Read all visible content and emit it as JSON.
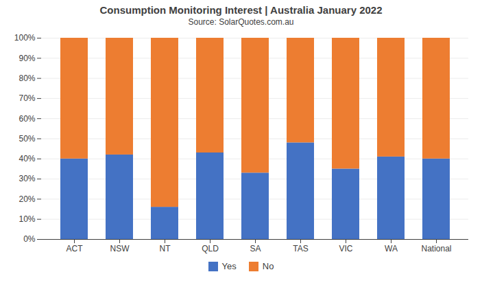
{
  "chart_data": {
    "type": "bar",
    "stacked": true,
    "title": "Consumption Monitoring Interest  |  Australia January 2022",
    "subtitle": "Source: SolarQuotes.com.au",
    "categories": [
      "ACT",
      "NSW",
      "NT",
      "QLD",
      "SA",
      "TAS",
      "VIC",
      "WA",
      "National"
    ],
    "series": [
      {
        "name": "Yes",
        "color": "#4472C4",
        "values": [
          40,
          42,
          16,
          43,
          33,
          48,
          35,
          41,
          40
        ]
      },
      {
        "name": "No",
        "color": "#ED7D31",
        "values": [
          60,
          58,
          84,
          57,
          67,
          52,
          65,
          59,
          60
        ]
      }
    ],
    "ylim": [
      0,
      100
    ],
    "yticks": [
      {
        "value": 0,
        "label": "0%"
      },
      {
        "value": 10,
        "label": "10%"
      },
      {
        "value": 20,
        "label": "20%"
      },
      {
        "value": 30,
        "label": "30%"
      },
      {
        "value": 40,
        "label": "40%"
      },
      {
        "value": 50,
        "label": "50%"
      },
      {
        "value": 60,
        "label": "60%"
      },
      {
        "value": 70,
        "label": "70%"
      },
      {
        "value": 80,
        "label": "80%"
      },
      {
        "value": 90,
        "label": "90%"
      },
      {
        "value": 100,
        "label": "100%"
      }
    ],
    "grid": true,
    "legend": "bottom"
  }
}
